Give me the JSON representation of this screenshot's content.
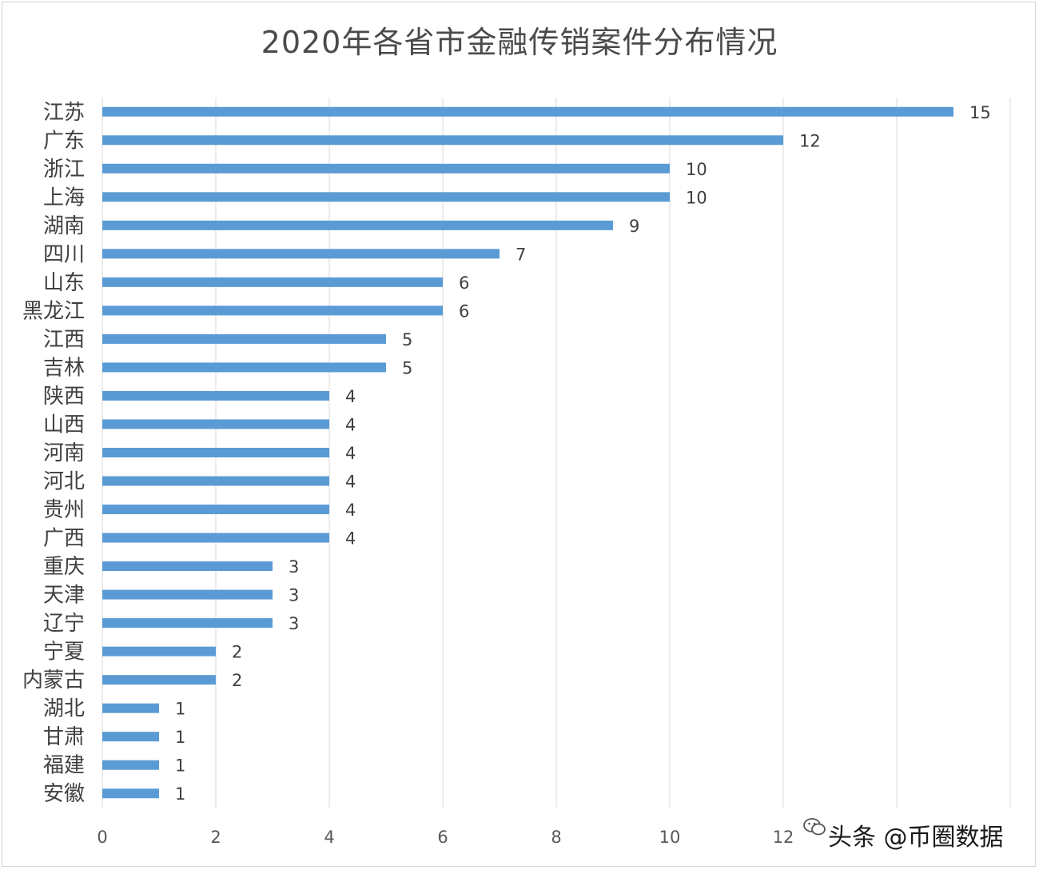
{
  "chart_data": {
    "type": "bar",
    "orientation": "horizontal",
    "title": "2020年各省市金融传销案件分布情况",
    "categories": [
      "江苏",
      "广东",
      "浙江",
      "上海",
      "湖南",
      "四川",
      "山东",
      "黑龙江",
      "江西",
      "吉林",
      "陕西",
      "山西",
      "河南",
      "河北",
      "贵州",
      "广西",
      "重庆",
      "天津",
      "辽宁",
      "宁夏",
      "内蒙古",
      "湖北",
      "甘肃",
      "福建",
      "安徽"
    ],
    "values": [
      15,
      12,
      10,
      10,
      9,
      7,
      6,
      6,
      5,
      5,
      4,
      4,
      4,
      4,
      4,
      4,
      3,
      3,
      3,
      2,
      2,
      1,
      1,
      1,
      1
    ],
    "xlim": [
      0,
      16
    ],
    "xticks": [
      0,
      2,
      4,
      6,
      8,
      10,
      12
    ],
    "grid": "vertical",
    "bar_color": "#5b9bd5",
    "data_labels": true
  },
  "watermark": {
    "text": "头条 @币圈数据",
    "icon": "wechat-logo-icon"
  }
}
